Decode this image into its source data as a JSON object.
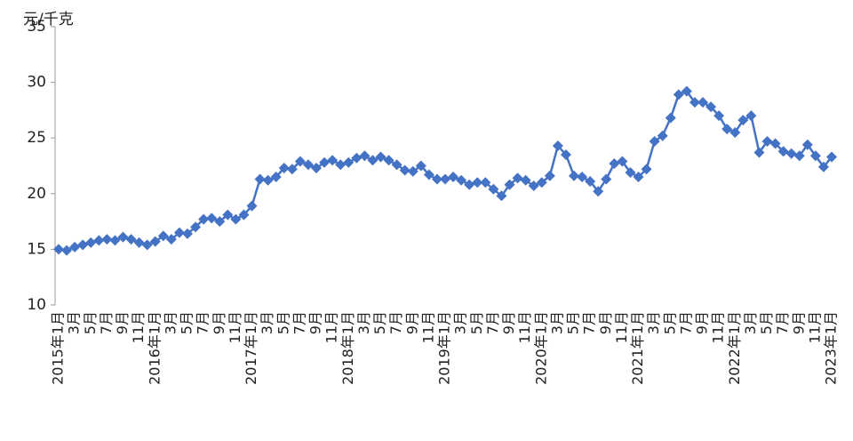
{
  "chart_data": {
    "type": "line",
    "y_label": "元/千克",
    "color": "#4472c4",
    "categories": [
      "2015年1月",
      null,
      "3月",
      null,
      "5月",
      null,
      "7月",
      null,
      "9月",
      null,
      "11月",
      null,
      "2016年1月",
      null,
      "3月",
      null,
      "5月",
      null,
      "7月",
      null,
      "9月",
      null,
      "11月",
      null,
      "2017年1月",
      null,
      "3月",
      null,
      "5月",
      null,
      "7月",
      null,
      "9月",
      null,
      "11月",
      null,
      "2018年1月",
      null,
      "3月",
      null,
      "5月",
      null,
      "7月",
      null,
      "9月",
      null,
      "11月",
      null,
      "2019年1月",
      null,
      "3月",
      null,
      "5月",
      null,
      "7月",
      null,
      "9月",
      null,
      "11月",
      null,
      "2020年1月",
      null,
      "3月",
      null,
      "5月",
      null,
      "7月",
      null,
      "9月",
      null,
      "11月",
      null,
      "2021年1月",
      null,
      "3月",
      null,
      "5月",
      null,
      "7月",
      null,
      "9月",
      null,
      "11月",
      null,
      "2022年1月",
      null,
      "3月",
      null,
      "5月",
      null,
      "7月",
      null,
      "9月",
      null,
      "11月",
      null,
      "2023年1月"
    ],
    "values": [
      15.0,
      14.9,
      15.2,
      15.4,
      15.6,
      15.8,
      15.9,
      15.8,
      16.1,
      15.9,
      15.6,
      15.4,
      15.7,
      16.2,
      15.9,
      16.5,
      16.4,
      17.0,
      17.7,
      17.8,
      17.5,
      18.1,
      17.7,
      18.1,
      18.9,
      21.3,
      21.2,
      21.5,
      22.3,
      22.2,
      22.9,
      22.6,
      22.3,
      22.8,
      23.0,
      22.6,
      22.8,
      23.2,
      23.4,
      23.0,
      23.3,
      23.0,
      22.6,
      22.1,
      22.0,
      22.5,
      21.7,
      21.3,
      21.3,
      21.5,
      21.2,
      20.8,
      21.0,
      21.0,
      20.4,
      19.8,
      20.8,
      21.4,
      21.2,
      20.7,
      21.0,
      21.6,
      24.3,
      23.5,
      21.6,
      21.5,
      21.1,
      20.2,
      21.3,
      22.7,
      22.9,
      21.9,
      21.5,
      22.2,
      24.7,
      25.2,
      26.8,
      28.9,
      29.2,
      28.2,
      28.2,
      27.8,
      27.0,
      25.8,
      25.5,
      26.6,
      27.0,
      23.7,
      24.7,
      24.5,
      23.8,
      23.6,
      23.4,
      24.4,
      23.4,
      22.4,
      23.3
    ],
    "ylim": [
      10,
      35
    ],
    "yticks": [
      10,
      15,
      20,
      25,
      30,
      35
    ],
    "grid": false
  }
}
